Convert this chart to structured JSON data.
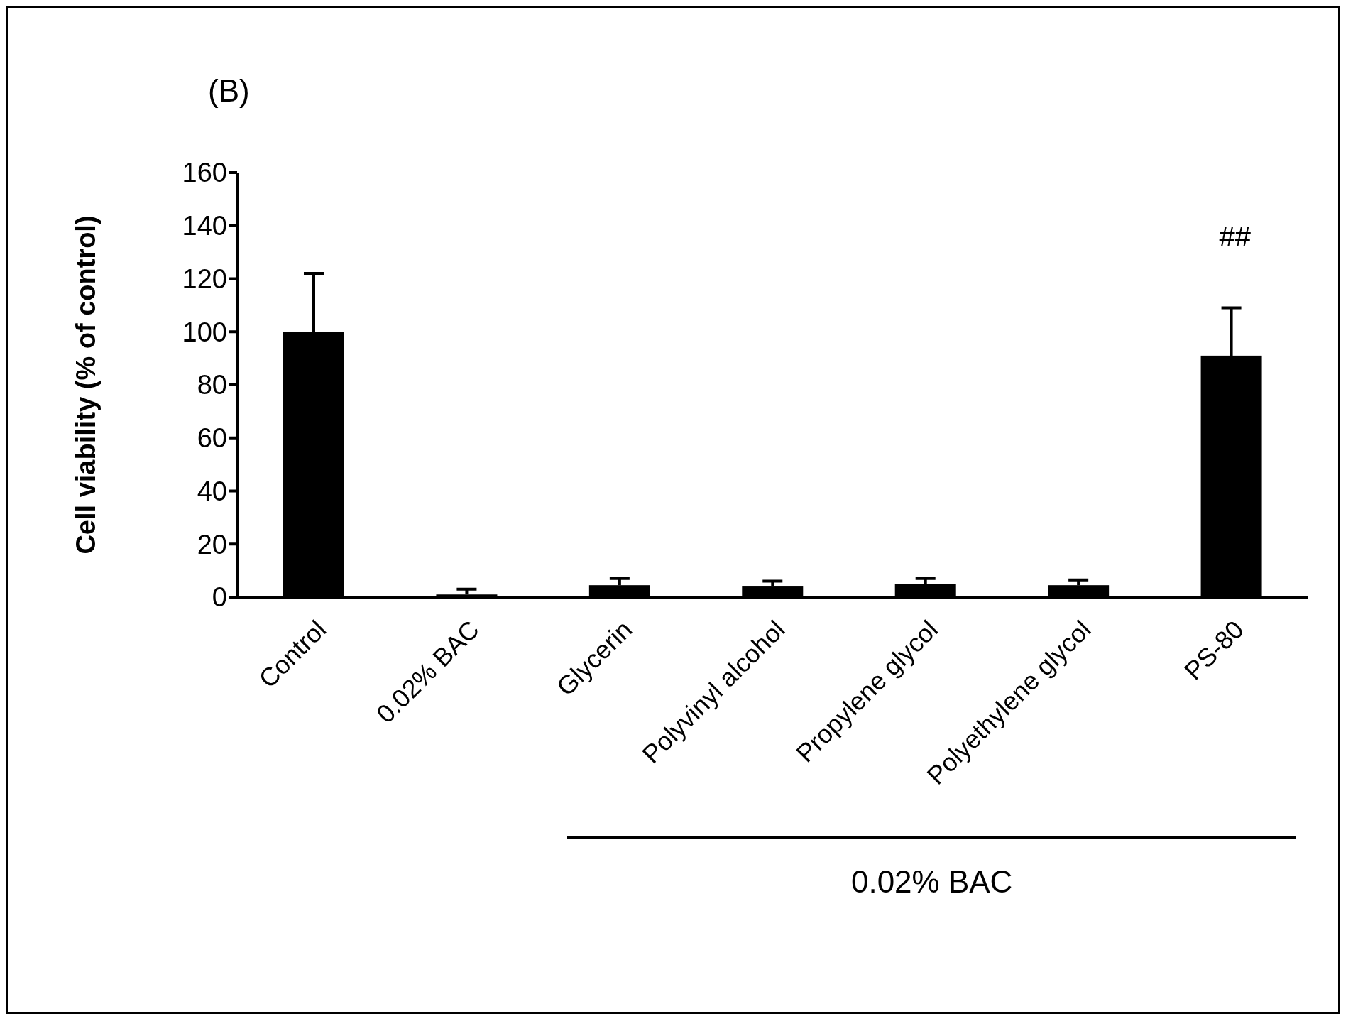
{
  "chart_data": {
    "type": "bar",
    "title": "(B)",
    "ylabel": "Cell viability (% of control)",
    "categories": [
      "Control",
      "0.02% BAC",
      "Glycerin",
      "Polyvinyl alcohol",
      "Propylene glycol",
      "Polyethylene glycol",
      "PS-80"
    ],
    "values": [
      100,
      1,
      4.5,
      4,
      5,
      4.5,
      91
    ],
    "errors": [
      [
        100,
        122
      ],
      [
        1,
        3
      ],
      [
        4.5,
        7
      ],
      [
        4,
        6
      ],
      [
        5,
        7
      ],
      [
        4.5,
        6.5
      ],
      [
        91,
        109
      ]
    ],
    "color": "#000000",
    "ylim": [
      0,
      160
    ],
    "yticks": [
      0,
      20,
      40,
      60,
      80,
      100,
      120,
      140,
      160
    ],
    "grid": false,
    "legend": false,
    "annotations": [
      "##",
      "0.02% BAC"
    ]
  }
}
